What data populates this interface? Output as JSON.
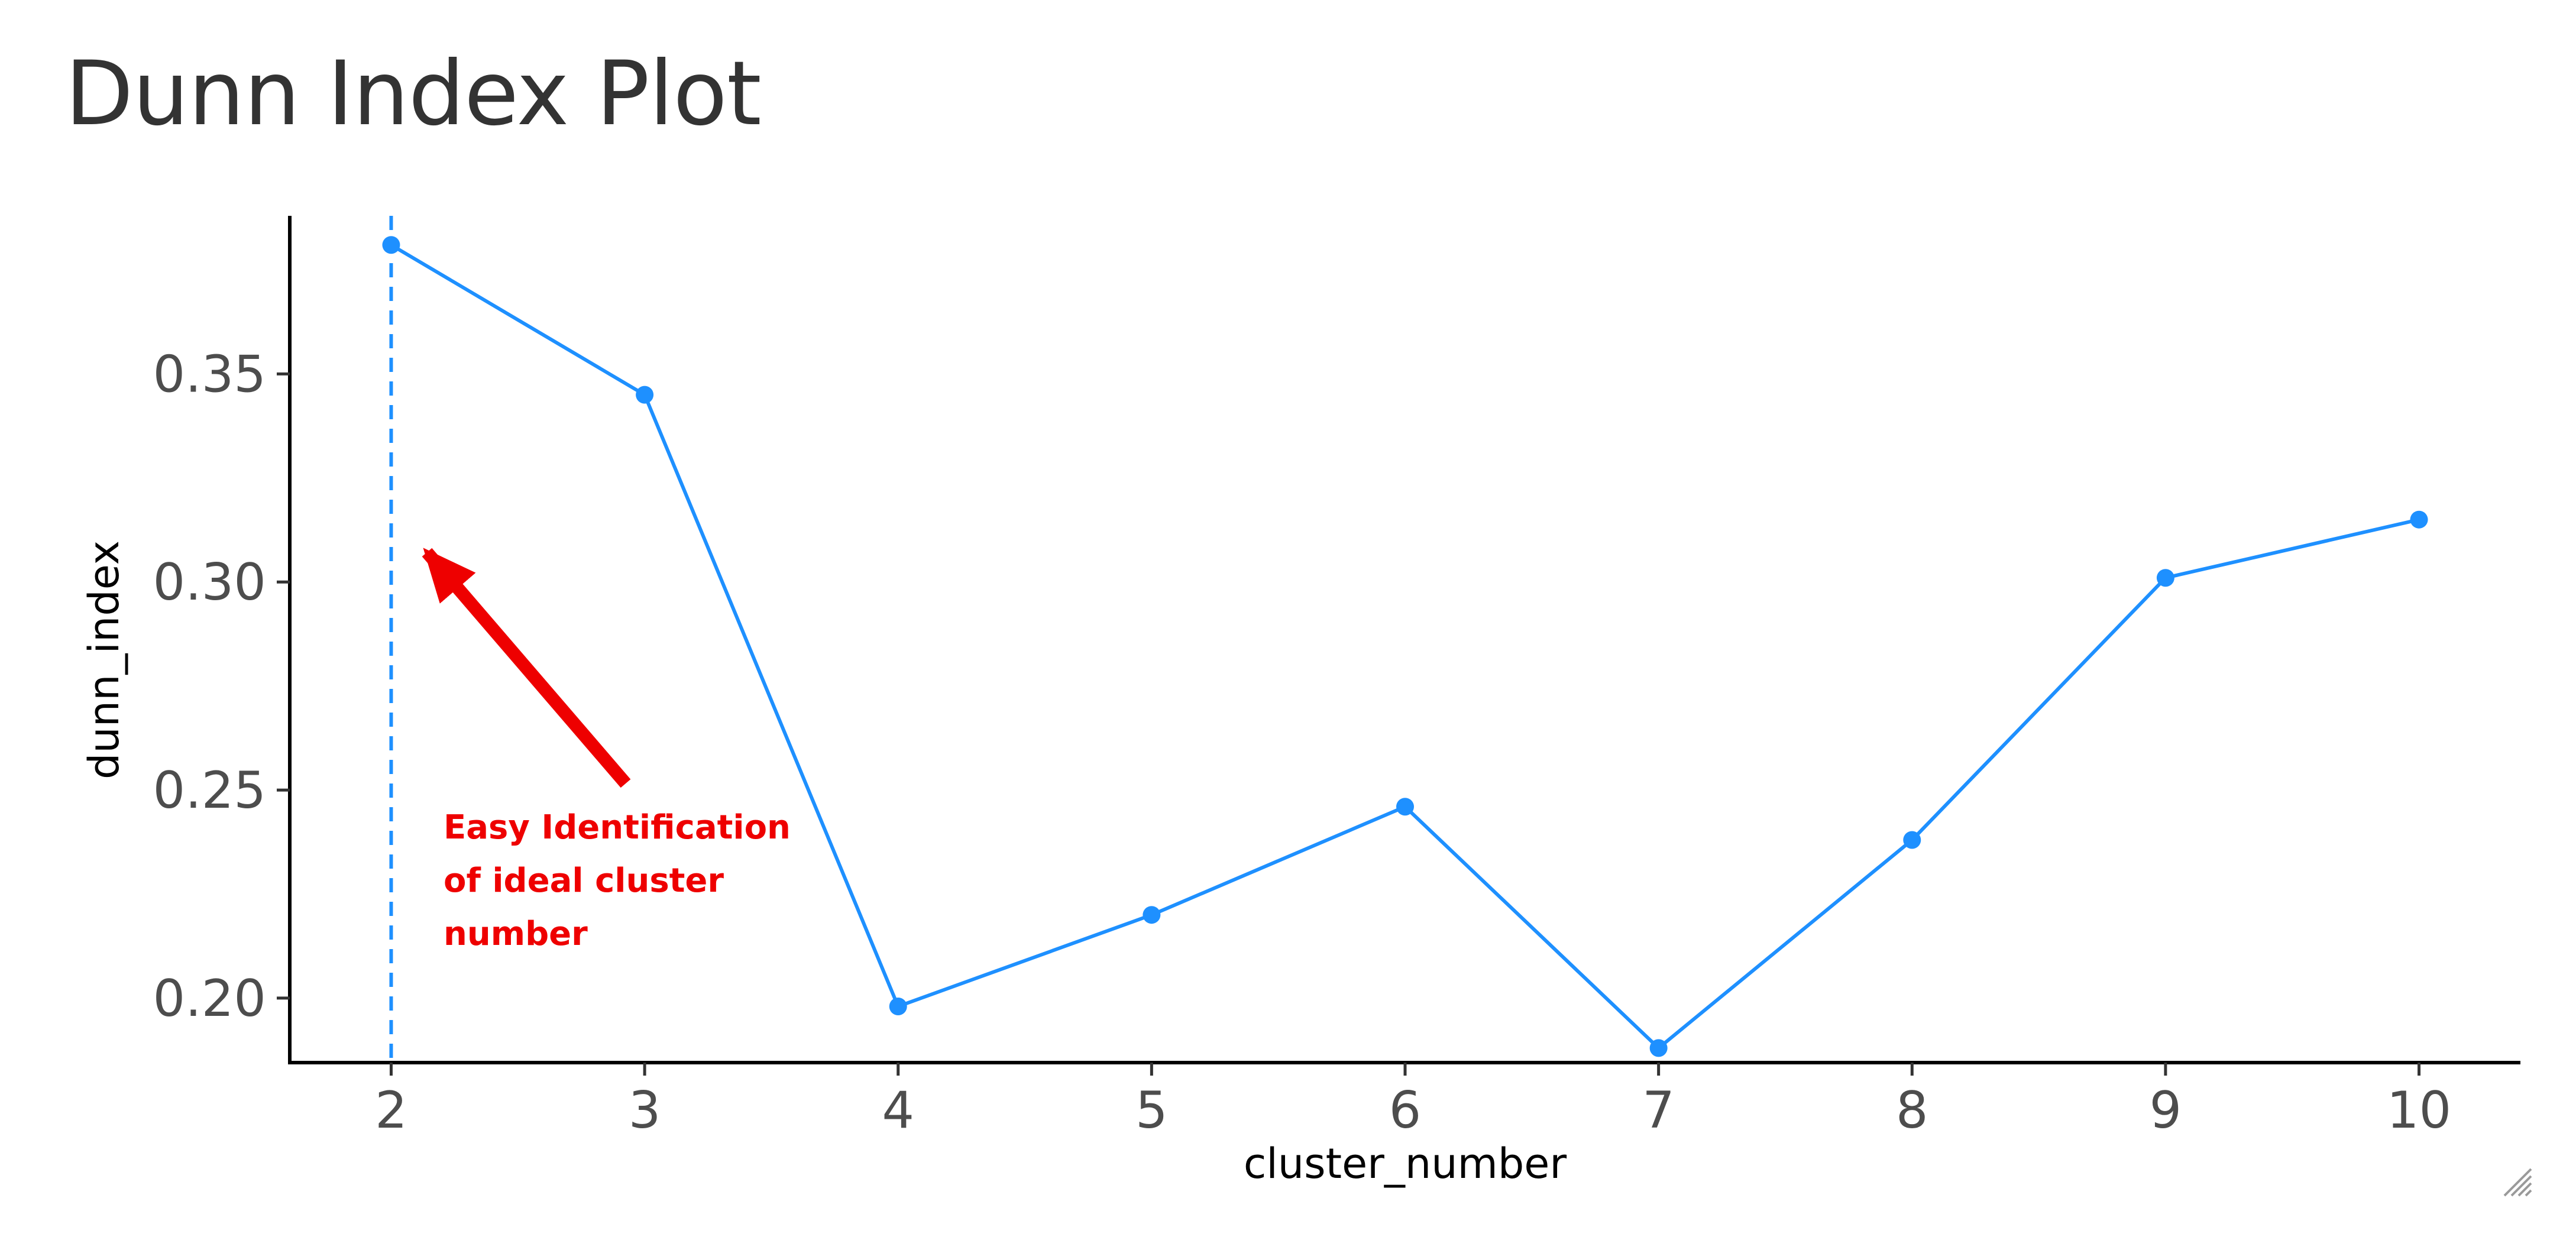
{
  "chart_data": {
    "type": "line",
    "title": "Dunn Index Plot",
    "xlabel": "cluster_number",
    "ylabel": "dunn_index",
    "x": [
      2,
      3,
      4,
      5,
      6,
      7,
      8,
      9,
      10
    ],
    "series": [
      {
        "values": [
          0.381,
          0.345,
          0.198,
          0.22,
          0.246,
          0.188,
          0.238,
          0.301,
          0.315
        ]
      }
    ],
    "xlim": [
      1.6,
      10.4
    ],
    "ylim": [
      0.1845,
      0.388
    ],
    "x_ticks": [
      2,
      3,
      4,
      5,
      6,
      7,
      8,
      9,
      10
    ],
    "x_tick_labels": [
      "2",
      "3",
      "4",
      "5",
      "6",
      "7",
      "8",
      "9",
      "10"
    ],
    "y_ticks": [
      0.2,
      0.25,
      0.3,
      0.35
    ],
    "y_tick_labels": [
      "0.20",
      "0.25",
      "0.30",
      "0.35"
    ],
    "grid": false,
    "series_color": "#1e90ff",
    "reference_line": {
      "x": 2,
      "style": "dashed",
      "color": "#1e90ff"
    },
    "annotation": {
      "lines": [
        "Easy Identification",
        "of ideal cluster",
        "number"
      ],
      "color": "#ee0000",
      "arrow_color": "#ee0000"
    }
  },
  "icons": {
    "resize_grip": "resize-grip-icon"
  }
}
